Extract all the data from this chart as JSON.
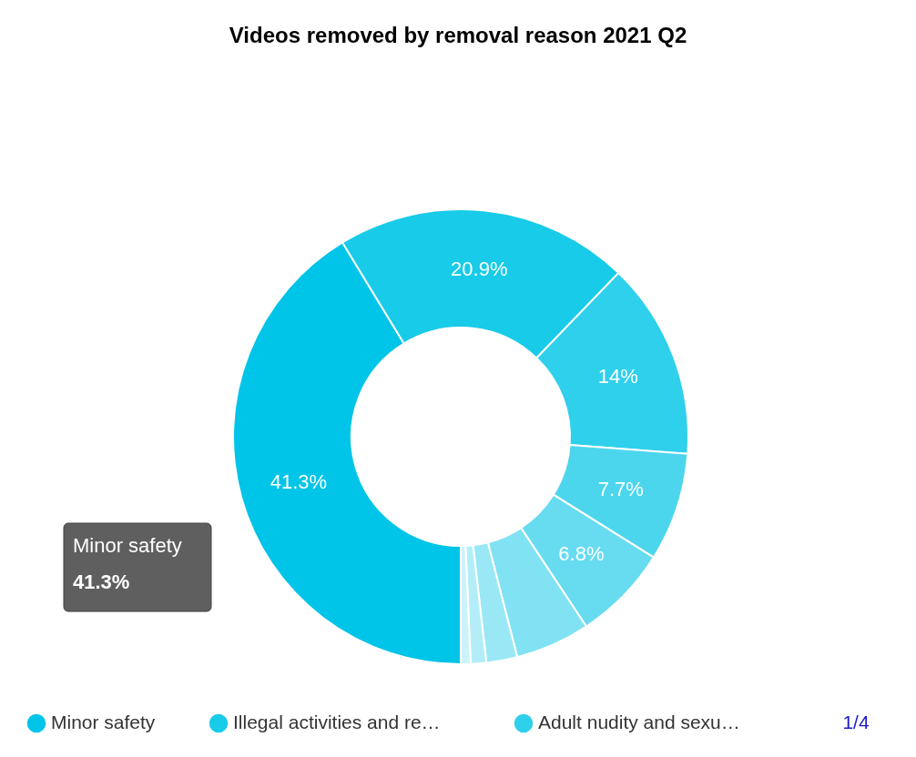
{
  "chart_data": {
    "type": "donut",
    "title": "Videos removed by removal reason 2021 Q2",
    "categories": [
      "Minor safety",
      "Illegal activities and re…",
      "Adult nudity and sexu…",
      null,
      null,
      null,
      null,
      null,
      null
    ],
    "values": [
      41.3,
      20.9,
      14,
      7.7,
      6.8,
      5.3,
      2.2,
      1.1,
      0.7
    ],
    "colors": [
      "#00c4e8",
      "#17cbe9",
      "#2fd0eb",
      "#4cd6ee",
      "#67dcf1",
      "#80e2f3",
      "#9ae8f5",
      "#b3eef8",
      "#cdf3fa"
    ],
    "value_labels": [
      "41.3%",
      "20.9%",
      "14%",
      "7.7%",
      "6.8%",
      null,
      null,
      null,
      null
    ],
    "legend": "bottom",
    "annotations": [
      "Minor safety",
      "41.3%",
      "1/4"
    ]
  }
}
